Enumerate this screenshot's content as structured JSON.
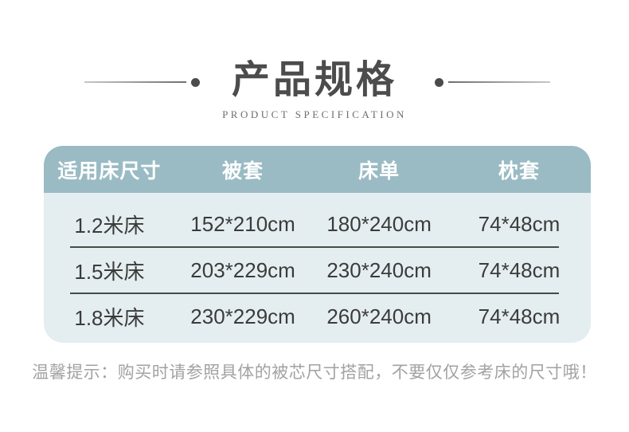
{
  "title": {
    "heading": "产品规格",
    "subtitle": "PRODUCT SPECIFICATION"
  },
  "table": {
    "headers": [
      "适用床尺寸",
      "被套",
      "床单",
      "枕套"
    ],
    "rows": [
      [
        "1.2米床",
        "152*210cm",
        "180*240cm",
        "74*48cm"
      ],
      [
        "1.5米床",
        "203*229cm",
        "230*240cm",
        "74*48cm"
      ],
      [
        "1.8米床",
        "230*229cm",
        "260*240cm",
        "74*48cm"
      ]
    ]
  },
  "note": "温馨提示：购买时请参照具体的被芯尺寸搭配，不要仅仅参考床的尺寸哦！",
  "colors": {
    "header_bg": "#9abbc4",
    "body_bg": "#e4eef1",
    "separator": "#424e46",
    "title_text": "#4c4c4c",
    "note_text": "#a2a2a2"
  }
}
